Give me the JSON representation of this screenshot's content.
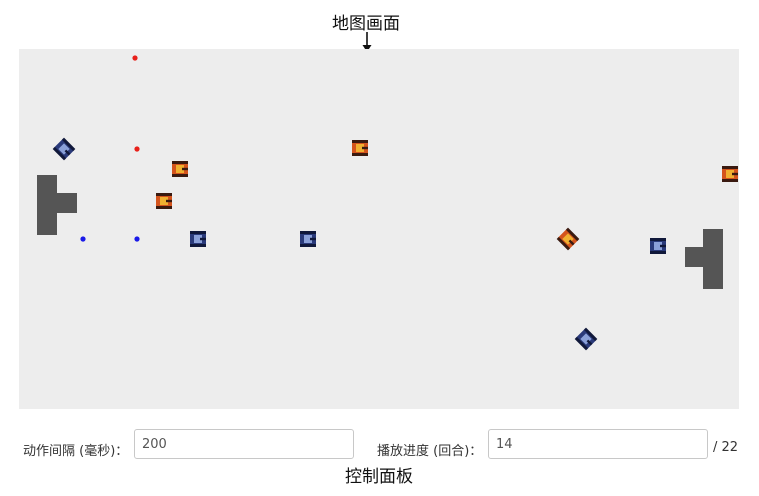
{
  "annotations": {
    "map": "地图画面",
    "controls": "控制面板"
  },
  "controls": {
    "interval_label": "动作间隔 (毫秒)：",
    "interval_value": "200",
    "progress_label": "播放进度 (回合)：",
    "progress_value": "14",
    "total_rounds": "/ 22"
  },
  "colors": {
    "map_background": "#ededed",
    "wall": "#555555",
    "red_team": "#e8201a",
    "blue_team": "#1a1ae8",
    "red_tank_body": "#d4541c",
    "blue_tank_body": "#2a3a7a"
  },
  "map": {
    "units": "map cells (20 per cell)",
    "walls": [
      {
        "name": "wall-left",
        "x": 0.9,
        "y": 6.3,
        "w": 1,
        "h": 3
      },
      {
        "name": "wall-left-arm",
        "x": 1.9,
        "y": 7.2,
        "w": 1,
        "h": 1
      },
      {
        "name": "wall-right",
        "x": 34.2,
        "y": 9.0,
        "w": 1,
        "h": 3
      },
      {
        "name": "wall-right-arm",
        "x": 33.3,
        "y": 9.9,
        "w": 1,
        "h": 1
      }
    ],
    "dots": [
      {
        "team": "red",
        "x": 5.8,
        "y": 0.45
      },
      {
        "team": "red",
        "x": 5.9,
        "y": 5.0
      },
      {
        "team": "blue",
        "x": 3.2,
        "y": 9.5
      },
      {
        "team": "blue",
        "x": 5.9,
        "y": 9.5
      }
    ],
    "tanks": [
      {
        "team": "blue",
        "x": 2.25,
        "y": 5.0,
        "angle": 45,
        "icon": "blue-tank-icon"
      },
      {
        "team": "red",
        "x": 8.05,
        "y": 6.0,
        "angle": 0,
        "icon": "red-tank-icon"
      },
      {
        "team": "red",
        "x": 7.25,
        "y": 7.6,
        "angle": 0,
        "icon": "red-tank-icon"
      },
      {
        "team": "blue",
        "x": 8.95,
        "y": 9.5,
        "angle": 0,
        "icon": "blue-tank-icon"
      },
      {
        "team": "red",
        "x": 17.05,
        "y": 4.95,
        "angle": 0,
        "icon": "red-tank-icon"
      },
      {
        "team": "blue",
        "x": 14.45,
        "y": 9.5,
        "angle": 0,
        "icon": "blue-tank-icon"
      },
      {
        "team": "red",
        "x": 27.45,
        "y": 9.5,
        "angle": 45,
        "icon": "red-tank-icon"
      },
      {
        "team": "blue",
        "x": 31.95,
        "y": 9.85,
        "angle": 0,
        "icon": "blue-tank-icon"
      },
      {
        "team": "red",
        "x": 35.55,
        "y": 6.25,
        "angle": 0,
        "icon": "red-tank-icon"
      },
      {
        "team": "blue",
        "x": 28.35,
        "y": 14.5,
        "angle": 45,
        "icon": "blue-tank-icon"
      }
    ]
  }
}
